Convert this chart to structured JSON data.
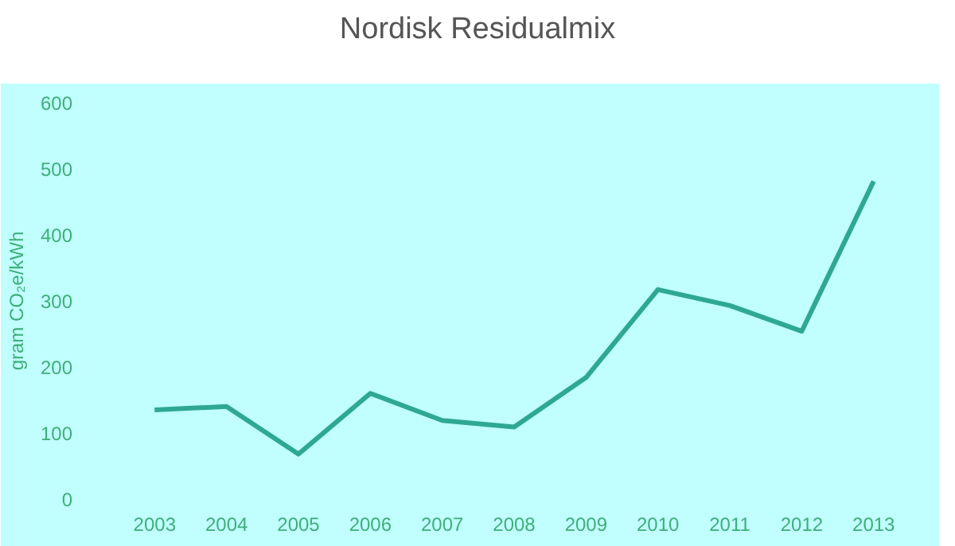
{
  "chart_data": {
    "type": "line",
    "title": "Nordisk Residualmix",
    "ylabel": "gram CO₂e/kWh",
    "categories": [
      "2003",
      "2004",
      "2005",
      "2006",
      "2007",
      "2008",
      "2009",
      "2010",
      "2011",
      "2012",
      "2013"
    ],
    "series": [
      {
        "color": "#2ea892",
        "values": [
          135,
          140,
          68,
          160,
          119,
          109,
          184,
          317,
          293,
          254,
          481
        ]
      }
    ],
    "ylim": [
      0,
      600
    ],
    "yticks": [
      0,
      100,
      200,
      300,
      400,
      500,
      600
    ],
    "line_style": "solid"
  }
}
